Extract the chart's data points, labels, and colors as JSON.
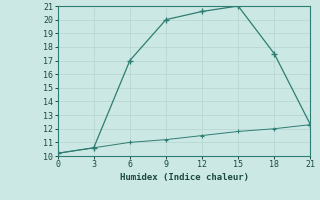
{
  "xlabel": "Humidex (Indice chaleur)",
  "line1_x": [
    0,
    3,
    6,
    9,
    12,
    15,
    18,
    21
  ],
  "line1_y": [
    10.2,
    10.6,
    17.0,
    20.0,
    20.6,
    21.0,
    17.5,
    12.3
  ],
  "line2_x": [
    0,
    3,
    6,
    9,
    12,
    15,
    18,
    21
  ],
  "line2_y": [
    10.2,
    10.6,
    11.0,
    11.2,
    11.5,
    11.8,
    12.0,
    12.3
  ],
  "line_color": "#2e7d72",
  "bg_color": "#cce8e4",
  "grid_color": "#b8d8d4",
  "xlim": [
    0,
    21
  ],
  "ylim": [
    10,
    21
  ],
  "xticks": [
    0,
    3,
    6,
    9,
    12,
    15,
    18,
    21
  ],
  "yticks": [
    10,
    11,
    12,
    13,
    14,
    15,
    16,
    17,
    18,
    19,
    20,
    21
  ]
}
